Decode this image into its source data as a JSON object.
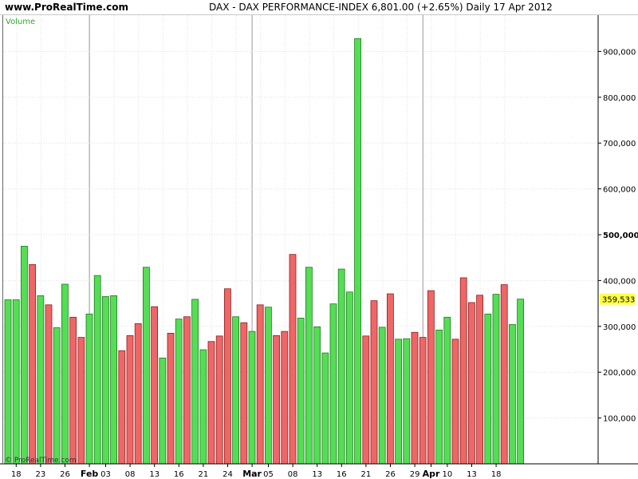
{
  "header": {
    "site": "www.ProRealTime.com",
    "title": "DAX - DAX PERFORMANCE-INDEX    6,801.00 (+2.65%)    Daily  17 Apr 2012"
  },
  "panel_label": "Volume",
  "copyright": "© ProRealTime.com",
  "colors": {
    "up": "#55dd55",
    "down": "#ee6666",
    "last_label_bg": "#ffff44"
  },
  "chart_data": {
    "type": "bar",
    "ylim": [
      0,
      1000000
    ],
    "y_ticks": [
      {
        "value": 100000,
        "label": "100,000"
      },
      {
        "value": 200000,
        "label": "200,000"
      },
      {
        "value": 300000,
        "label": "300,000"
      },
      {
        "value": 400000,
        "label": "400,000"
      },
      {
        "value": 500000,
        "label": "500,000",
        "bold": true
      },
      {
        "value": 600000,
        "label": "600,000"
      },
      {
        "value": 700000,
        "label": "700,000"
      },
      {
        "value": 800000,
        "label": "800,000"
      },
      {
        "value": 900000,
        "label": "900,000"
      }
    ],
    "last_value": {
      "value": 359533,
      "label": "359,533"
    },
    "x_labels": [
      {
        "index": 1,
        "label": "18"
      },
      {
        "index": 4,
        "label": "23"
      },
      {
        "index": 7,
        "label": "26"
      },
      {
        "index": 10,
        "label": "Feb",
        "month": true
      },
      {
        "index": 12,
        "label": "03"
      },
      {
        "index": 15,
        "label": "08"
      },
      {
        "index": 18,
        "label": "13"
      },
      {
        "index": 21,
        "label": "16"
      },
      {
        "index": 24,
        "label": "21"
      },
      {
        "index": 27,
        "label": "24"
      },
      {
        "index": 30,
        "label": "Mar",
        "month": true
      },
      {
        "index": 32,
        "label": "05"
      },
      {
        "index": 35,
        "label": "08"
      },
      {
        "index": 38,
        "label": "13"
      },
      {
        "index": 41,
        "label": "16"
      },
      {
        "index": 44,
        "label": "21"
      },
      {
        "index": 47,
        "label": "26"
      },
      {
        "index": 50,
        "label": "29"
      },
      {
        "index": 52,
        "label": "Apr",
        "month": true
      },
      {
        "index": 54,
        "label": "10"
      },
      {
        "index": 57,
        "label": "13"
      },
      {
        "index": 60,
        "label": "18"
      }
    ],
    "month_lines": [
      10.5,
      30.5,
      51.5
    ],
    "values": [
      358000,
      358000,
      475000,
      435000,
      367000,
      347000,
      297000,
      392000,
      320000,
      276000,
      327000,
      411000,
      365000,
      367000,
      247000,
      280000,
      306000,
      429000,
      343000,
      231000,
      285000,
      316000,
      321000,
      359000,
      249000,
      267000,
      279000,
      382000,
      321000,
      308000,
      289000,
      347000,
      342000,
      280000,
      289000,
      457000,
      318000,
      429000,
      299000,
      242000,
      349000,
      425000,
      375000,
      928000,
      279000,
      356000,
      298000,
      371000,
      272000,
      273000,
      287000,
      276000,
      378000,
      292000,
      320000,
      272000,
      406000,
      352000,
      368000,
      327000,
      370000,
      391000,
      304000,
      359533
    ],
    "directions": [
      "up",
      "up",
      "up",
      "down",
      "up",
      "down",
      "up",
      "up",
      "down",
      "down",
      "up",
      "up",
      "up",
      "up",
      "down",
      "down",
      "down",
      "up",
      "down",
      "up",
      "down",
      "up",
      "down",
      "up",
      "up",
      "down",
      "down",
      "down",
      "up",
      "down",
      "up",
      "down",
      "up",
      "down",
      "down",
      "down",
      "up",
      "up",
      "up",
      "up",
      "up",
      "up",
      "up",
      "up",
      "down",
      "down",
      "up",
      "down",
      "up",
      "up",
      "down",
      "down",
      "down",
      "up",
      "up",
      "down",
      "down",
      "down",
      "down",
      "up",
      "up",
      "down",
      "up",
      "up"
    ]
  }
}
